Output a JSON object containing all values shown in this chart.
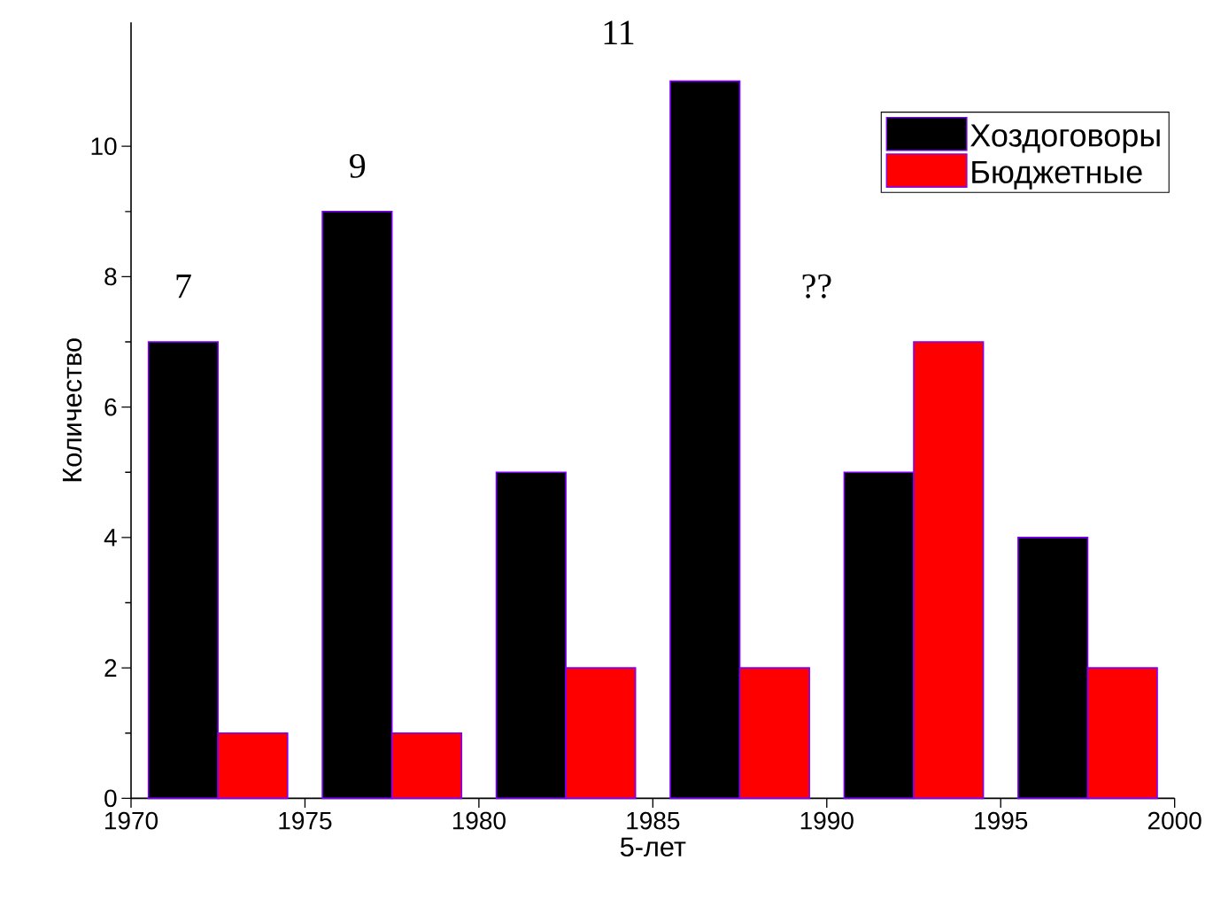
{
  "chart_data": {
    "type": "bar",
    "xlabel": "5-лет",
    "ylabel": "Количество",
    "series": [
      {
        "name": "Хоздоговоры",
        "color": "#000000",
        "x": [
          1971.5,
          1976.5,
          1981.5,
          1986.5,
          1991.5,
          1996.5
        ],
        "values": [
          7,
          9,
          5,
          11,
          5,
          4
        ]
      },
      {
        "name": "Бюджетные",
        "color": "#ff0000",
        "x": [
          1973.5,
          1978.5,
          1983.5,
          1988.5,
          1993.5,
          1998.5
        ],
        "values": [
          1,
          1,
          2,
          2,
          7,
          2
        ]
      }
    ],
    "annotations": [
      "7",
      "9",
      "11",
      "??"
    ],
    "xlim": [
      1970,
      2000
    ],
    "xticks": [
      1970,
      1975,
      1980,
      1985,
      1990,
      1995,
      2000
    ],
    "ylim": [
      0,
      11.9
    ],
    "yticks": [
      0,
      2,
      4,
      6,
      8,
      10
    ],
    "grid": false,
    "legend": "top right"
  }
}
